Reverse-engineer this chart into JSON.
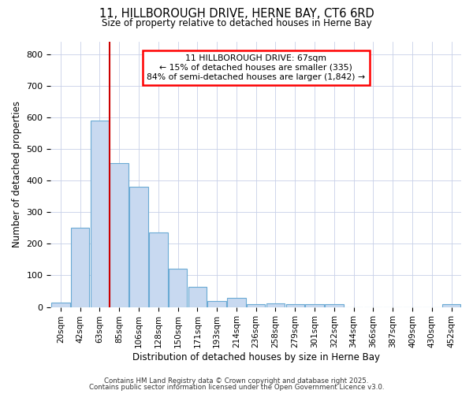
{
  "title": "11, HILLBOROUGH DRIVE, HERNE BAY, CT6 6RD",
  "subtitle": "Size of property relative to detached houses in Herne Bay",
  "xlabel": "Distribution of detached houses by size in Herne Bay",
  "ylabel": "Number of detached properties",
  "bar_color": "#c8d9f0",
  "bar_edge_color": "#6aaad4",
  "background_color": "#ffffff",
  "grid_color": "#c8d0e8",
  "vline_color": "#cc0000",
  "vline_x": 2.5,
  "categories": [
    "20sqm",
    "42sqm",
    "63sqm",
    "85sqm",
    "106sqm",
    "128sqm",
    "150sqm",
    "171sqm",
    "193sqm",
    "214sqm",
    "236sqm",
    "258sqm",
    "279sqm",
    "301sqm",
    "322sqm",
    "344sqm",
    "366sqm",
    "387sqm",
    "409sqm",
    "430sqm",
    "452sqm"
  ],
  "values": [
    15,
    250,
    590,
    455,
    380,
    235,
    120,
    65,
    20,
    30,
    10,
    12,
    8,
    10,
    10,
    0,
    0,
    0,
    0,
    0,
    8
  ],
  "ylim": [
    0,
    840
  ],
  "yticks": [
    0,
    100,
    200,
    300,
    400,
    500,
    600,
    700,
    800
  ],
  "annotation_box_text": "11 HILLBOROUGH DRIVE: 67sqm\n← 15% of detached houses are smaller (335)\n84% of semi-detached houses are larger (1,842) →",
  "footer1": "Contains HM Land Registry data © Crown copyright and database right 2025.",
  "footer2": "Contains public sector information licensed under the Open Government Licence v3.0."
}
